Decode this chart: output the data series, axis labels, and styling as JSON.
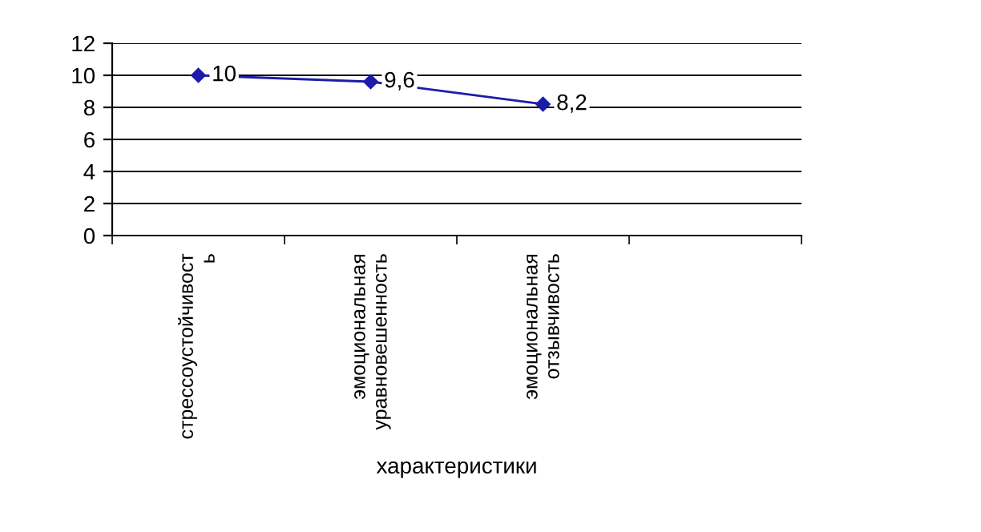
{
  "chart_data": {
    "type": "line",
    "xlabel": "характеристики",
    "categories": [
      "стрессоустойчивост\nь",
      "эмоциональная\nуравновешенность",
      "эмоциональная\nотзывчивость",
      null
    ],
    "series": [
      {
        "color": "#1c1ca8",
        "values": [
          10,
          9.6,
          8.2,
          null
        ],
        "value_labels": [
          "10",
          "9,6",
          "8,2",
          null
        ]
      }
    ],
    "ylim": [
      0,
      12
    ],
    "yticks": [
      0,
      2,
      4,
      6,
      8,
      10,
      12
    ],
    "grid": "y",
    "marker": "diamond",
    "line_style": "solid",
    "legend": false
  }
}
